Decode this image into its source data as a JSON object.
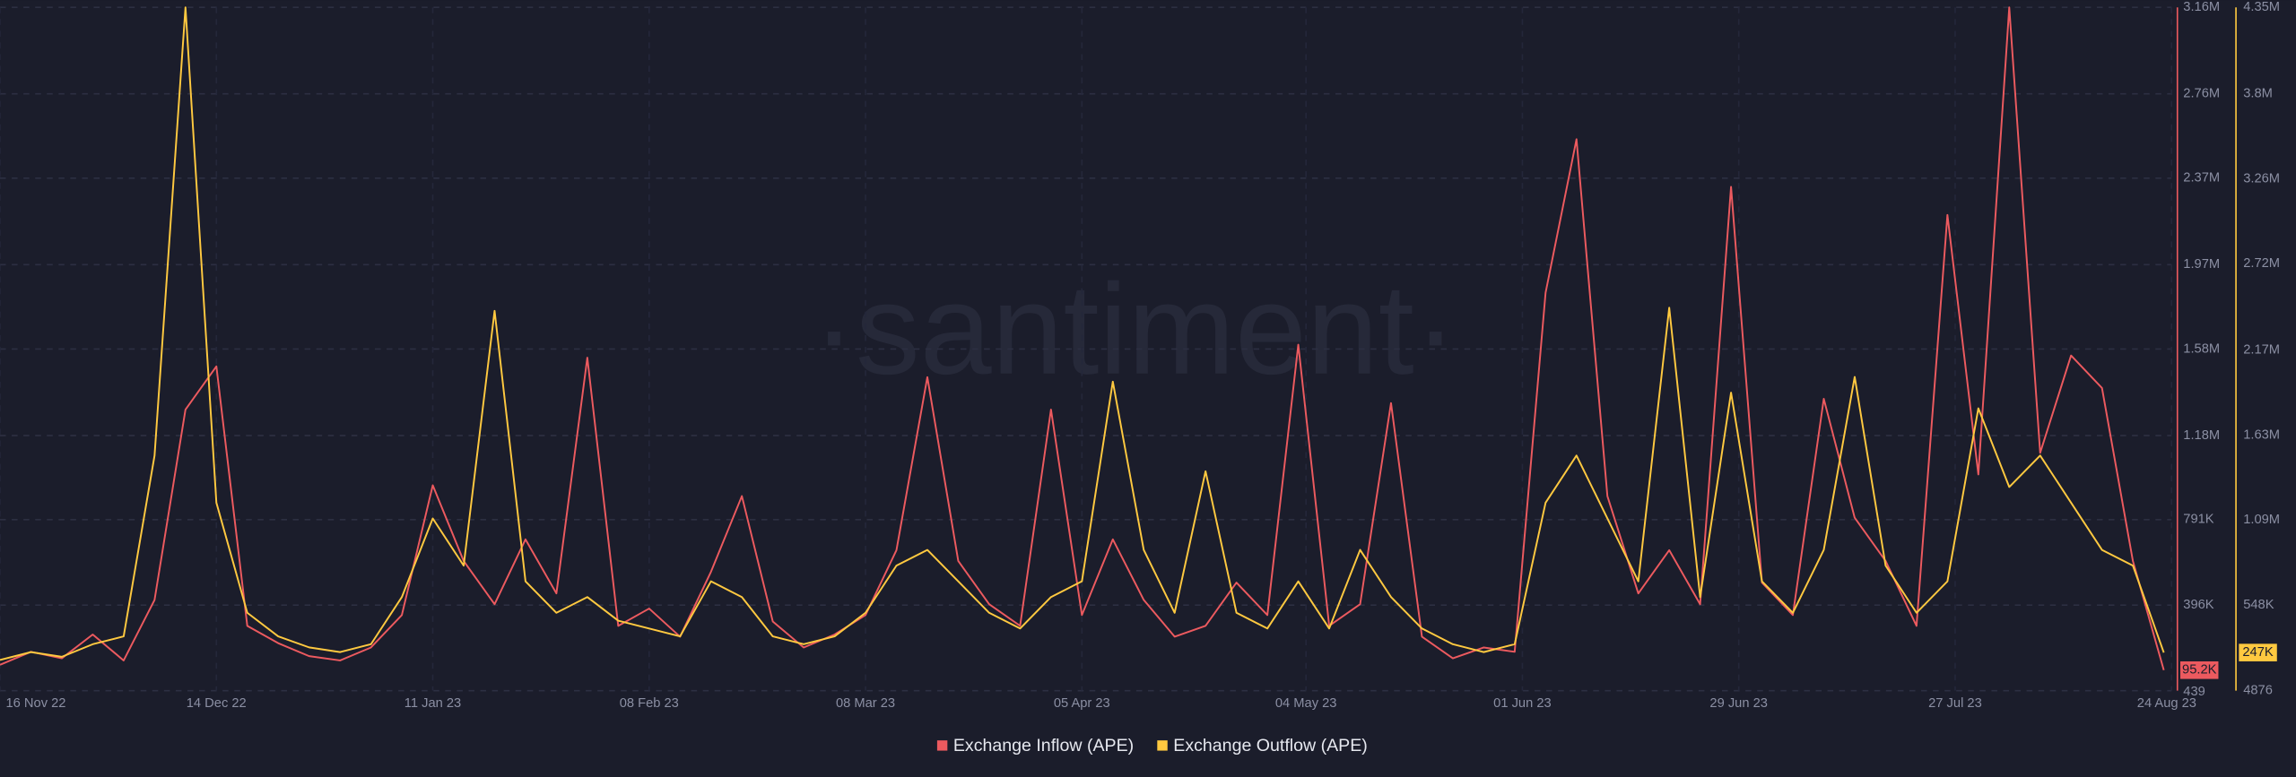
{
  "chart_data": {
    "type": "line",
    "watermark": "·santiment·",
    "x": [
      "2022-11-16",
      "2022-11-20",
      "2022-11-24",
      "2022-11-28",
      "2022-12-02",
      "2022-12-06",
      "2022-12-10",
      "2022-12-14",
      "2022-12-18",
      "2022-12-22",
      "2022-12-26",
      "2022-12-30",
      "2023-01-03",
      "2023-01-07",
      "2023-01-11",
      "2023-01-15",
      "2023-01-19",
      "2023-01-23",
      "2023-01-27",
      "2023-01-31",
      "2023-02-04",
      "2023-02-08",
      "2023-02-12",
      "2023-02-16",
      "2023-02-20",
      "2023-02-24",
      "2023-02-28",
      "2023-03-04",
      "2023-03-08",
      "2023-03-12",
      "2023-03-16",
      "2023-03-20",
      "2023-03-24",
      "2023-03-28",
      "2023-04-01",
      "2023-04-05",
      "2023-04-09",
      "2023-04-13",
      "2023-04-17",
      "2023-04-21",
      "2023-04-25",
      "2023-04-29",
      "2023-05-03",
      "2023-05-07",
      "2023-05-11",
      "2023-05-15",
      "2023-05-19",
      "2023-05-23",
      "2023-05-27",
      "2023-05-31",
      "2023-06-04",
      "2023-06-08",
      "2023-06-12",
      "2023-06-16",
      "2023-06-20",
      "2023-06-24",
      "2023-06-28",
      "2023-07-02",
      "2023-07-06",
      "2023-07-10",
      "2023-07-14",
      "2023-07-18",
      "2023-07-22",
      "2023-07-26",
      "2023-07-30",
      "2023-08-03",
      "2023-08-07",
      "2023-08-11",
      "2023-08-15",
      "2023-08-19",
      "2023-08-23"
    ],
    "xlim": [
      "2022-11-16",
      "2023-08-24"
    ],
    "xticks": [
      {
        "value": "2022-11-16",
        "label": "16 Nov 22"
      },
      {
        "value": "2022-12-14",
        "label": "14 Dec 22"
      },
      {
        "value": "2023-01-11",
        "label": "11 Jan 23"
      },
      {
        "value": "2023-02-08",
        "label": "08 Feb 23"
      },
      {
        "value": "2023-03-08",
        "label": "08 Mar 23"
      },
      {
        "value": "2023-04-05",
        "label": "05 Apr 23"
      },
      {
        "value": "2023-05-04",
        "label": "04 May 23"
      },
      {
        "value": "2023-06-01",
        "label": "01 Jun 23"
      },
      {
        "value": "2023-06-29",
        "label": "29 Jun 23"
      },
      {
        "value": "2023-07-27",
        "label": "27 Jul 23"
      },
      {
        "value": "2023-08-24",
        "label": "24 Aug 23"
      }
    ],
    "ylim": [
      439,
      3160000
    ],
    "yticks": [
      439,
      {
        "value": 396000,
        "label": "396K"
      },
      {
        "value": 791000,
        "label": "791K"
      },
      {
        "value": 1180000,
        "label": "1.18M"
      },
      {
        "value": 1580000,
        "label": "1.58M"
      },
      {
        "value": 1970000,
        "label": "1.97M"
      },
      {
        "value": 2370000,
        "label": "2.37M"
      },
      {
        "value": 2760000,
        "label": "2.76M"
      },
      {
        "value": 3160000,
        "label": "3.16M"
      }
    ],
    "y2lim": [
      4876,
      4350000
    ],
    "y2ticks": [
      4876,
      {
        "value": 548000,
        "label": "548K"
      },
      {
        "value": 1090000,
        "label": "1.09M"
      },
      {
        "value": 1630000,
        "label": "1.63M"
      },
      {
        "value": 2170000,
        "label": "2.17M"
      },
      {
        "value": 2720000,
        "label": "2.72M"
      },
      {
        "value": 3260000,
        "label": "3.26M"
      },
      {
        "value": 3800000,
        "label": "3.8M"
      },
      {
        "value": 4350000,
        "label": "4.35M"
      }
    ],
    "grid": true,
    "series": [
      {
        "name": "Exchange Inflow (APE)",
        "color": "#ec5a5f",
        "axis": "y",
        "current_label": {
          "value": 95200,
          "label": "95.2K"
        },
        "values": [
          120000,
          180000,
          150000,
          260000,
          140000,
          420000,
          1300000,
          1500000,
          300000,
          220000,
          160000,
          140000,
          200000,
          350000,
          950000,
          600000,
          400000,
          700000,
          450000,
          1540000,
          300000,
          380000,
          250000,
          550000,
          900000,
          320000,
          200000,
          260000,
          350000,
          650000,
          1450000,
          600000,
          400000,
          300000,
          1300000,
          350000,
          700000,
          420000,
          250000,
          300000,
          500000,
          350000,
          1600000,
          300000,
          400000,
          1330000,
          250000,
          150000,
          200000,
          180000,
          1840000,
          2550000,
          900000,
          450000,
          650000,
          400000,
          2330000,
          500000,
          350000,
          1350000,
          800000,
          600000,
          300000,
          2200000,
          1000000,
          3160000,
          1100000,
          1550000,
          1400000,
          600000,
          95200
        ]
      },
      {
        "name": "Exchange Outflow (APE)",
        "color": "#ffc940",
        "axis": "y2",
        "current_label": {
          "value": 247000,
          "label": "247K"
        },
        "values": [
          200000,
          250000,
          220000,
          300000,
          350000,
          1500000,
          4350000,
          1200000,
          500000,
          350000,
          280000,
          250000,
          300000,
          600000,
          1100000,
          800000,
          2420000,
          700000,
          500000,
          600000,
          450000,
          400000,
          350000,
          700000,
          600000,
          350000,
          300000,
          350000,
          500000,
          800000,
          900000,
          700000,
          500000,
          400000,
          600000,
          700000,
          1970000,
          900000,
          500000,
          1400000,
          500000,
          400000,
          700000,
          400000,
          900000,
          600000,
          400000,
          300000,
          250000,
          300000,
          1200000,
          1500000,
          1100000,
          700000,
          2440000,
          600000,
          1900000,
          700000,
          500000,
          900000,
          2000000,
          800000,
          500000,
          700000,
          1800000,
          1300000,
          1500000,
          1200000,
          900000,
          800000,
          247000
        ]
      }
    ]
  }
}
